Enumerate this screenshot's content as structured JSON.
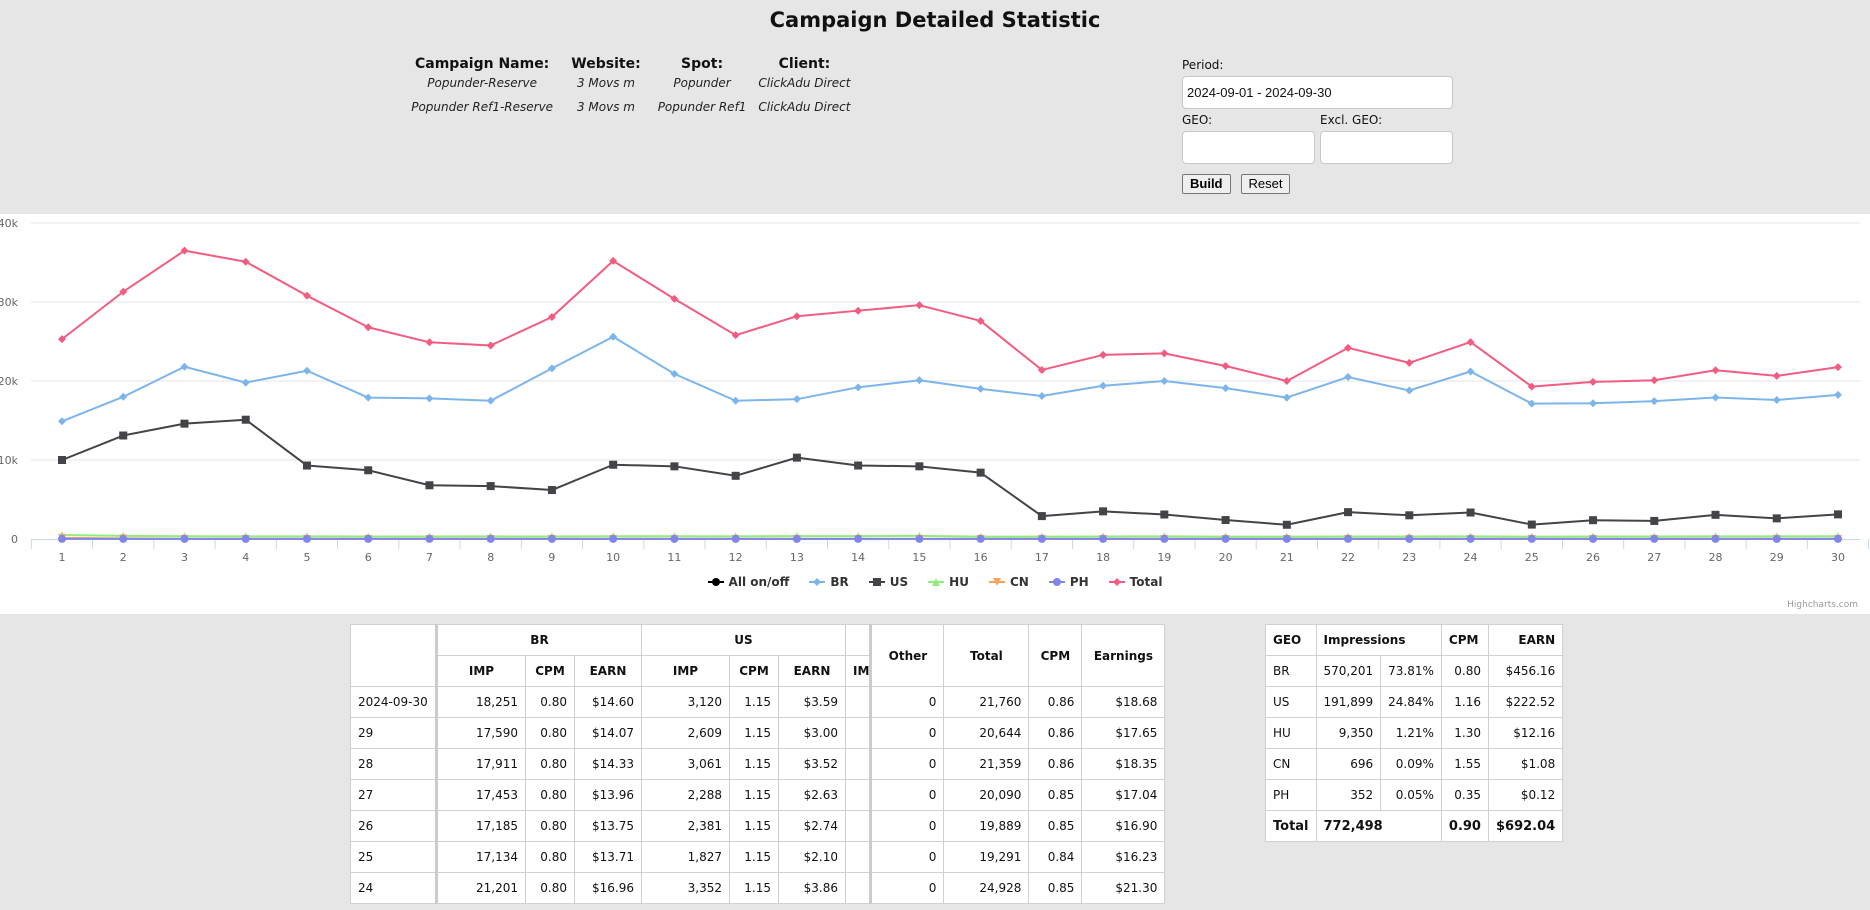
{
  "page": {
    "title": "Campaign Detailed Statistic"
  },
  "info": {
    "headers": [
      "Campaign Name:",
      "Website:",
      "Spot:",
      "Client:"
    ],
    "rows": [
      [
        "Popunder-Reserve",
        "3 Movs m",
        "Popunder",
        "ClickAdu Direct"
      ],
      [
        "Popunder Ref1-Reserve",
        "3 Movs m",
        "Popunder Ref1",
        "ClickAdu Direct"
      ]
    ]
  },
  "filters": {
    "period_label": "Period:",
    "period_value": "2024-09-01 - 2024-09-30",
    "geo_label": "GEO:",
    "geo_value": "",
    "excl_geo_label": "Excl. GEO:",
    "excl_geo_value": "",
    "build_label": "Build",
    "reset_label": "Reset"
  },
  "chart_data": {
    "type": "line",
    "title": "",
    "xlabel": "",
    "ylabel": "",
    "ylim": [
      0,
      40000
    ],
    "y_ticks": [
      "0",
      "10k",
      "20k",
      "30k",
      "40k"
    ],
    "grid": true,
    "legend_placement": "bottom-center",
    "credits": "Highcharts.com",
    "x": [
      1,
      2,
      3,
      4,
      5,
      6,
      7,
      8,
      9,
      10,
      11,
      12,
      13,
      14,
      15,
      16,
      17,
      18,
      19,
      20,
      21,
      22,
      23,
      24,
      25,
      26,
      27,
      28,
      29,
      30
    ],
    "legend": [
      {
        "name": "All on/off",
        "color": "#000000",
        "marker": "circle"
      },
      {
        "name": "BR",
        "color": "#7cb5ec",
        "marker": "diamond"
      },
      {
        "name": "US",
        "color": "#434348",
        "marker": "square"
      },
      {
        "name": "HU",
        "color": "#90ed7d",
        "marker": "triangle"
      },
      {
        "name": "CN",
        "color": "#f7a35c",
        "marker": "triangle-down"
      },
      {
        "name": "PH",
        "color": "#8085e9",
        "marker": "circle"
      },
      {
        "name": "Total",
        "color": "#f15c80",
        "marker": "diamond"
      }
    ],
    "series": [
      {
        "name": "BR",
        "color": "#7cb5ec",
        "marker": "diamond",
        "values": [
          14900,
          18000,
          21800,
          19800,
          21300,
          17900,
          17800,
          17500,
          21600,
          25600,
          20900,
          17500,
          17700,
          19200,
          20100,
          19000,
          18100,
          19400,
          20000,
          19100,
          17900,
          20500,
          18800,
          21201,
          17134,
          17185,
          17453,
          17911,
          17590,
          18251
        ]
      },
      {
        "name": "US",
        "color": "#434348",
        "marker": "square",
        "values": [
          10000,
          13100,
          14600,
          15100,
          9300,
          8700,
          6800,
          6700,
          6200,
          9400,
          9200,
          8000,
          10300,
          9300,
          9200,
          8400,
          2900,
          3500,
          3100,
          2400,
          1800,
          3400,
          3000,
          3352,
          1827,
          2381,
          2288,
          3061,
          2609,
          3120
        ]
      },
      {
        "name": "HU",
        "color": "#90ed7d",
        "marker": "triangle",
        "values": [
          500,
          400,
          350,
          330,
          330,
          320,
          320,
          330,
          310,
          350,
          350,
          340,
          360,
          370,
          390,
          300,
          300,
          320,
          330,
          300,
          300,
          310,
          320,
          330,
          300,
          310,
          310,
          330,
          330,
          350
        ]
      },
      {
        "name": "CN",
        "color": "#f7a35c",
        "marker": "triangle-down",
        "values": [
          150,
          80,
          20,
          20,
          20,
          20,
          20,
          20,
          20,
          20,
          20,
          20,
          20,
          20,
          20,
          20,
          20,
          20,
          20,
          20,
          20,
          20,
          20,
          20,
          20,
          20,
          20,
          20,
          20,
          20
        ]
      },
      {
        "name": "PH",
        "color": "#8085e9",
        "marker": "circle",
        "values": [
          10,
          10,
          12,
          12,
          12,
          12,
          12,
          12,
          12,
          12,
          12,
          12,
          12,
          12,
          12,
          12,
          12,
          12,
          12,
          12,
          12,
          12,
          12,
          12,
          12,
          12,
          12,
          12,
          12,
          12
        ]
      },
      {
        "name": "Total",
        "color": "#f15c80",
        "marker": "diamond",
        "values": [
          25300,
          31300,
          36500,
          35100,
          30800,
          26800,
          24900,
          24500,
          28100,
          35200,
          30400,
          25800,
          28200,
          28900,
          29600,
          27600,
          21400,
          23300,
          23500,
          21900,
          20000,
          24200,
          22300,
          24928,
          19291,
          19889,
          20090,
          21359,
          20644,
          21760
        ]
      }
    ]
  },
  "stats_table": {
    "group_headers": [
      "BR",
      "US"
    ],
    "sub_headers": [
      "IMP",
      "CPM",
      "EARN",
      "IMP",
      "CPM",
      "EARN",
      "IM"
    ],
    "right_headers": [
      "Other",
      "Total",
      "CPM",
      "Earnings"
    ],
    "rows": [
      {
        "date": "2024-09-30",
        "br_imp": "18,251",
        "br_cpm": "0.80",
        "br_earn": "$14.60",
        "us_imp": "3,120",
        "us_cpm": "1.15",
        "us_earn": "$3.59",
        "other": "0",
        "total": "21,760",
        "cpm": "0.86",
        "earnings": "$18.68"
      },
      {
        "date": "29",
        "br_imp": "17,590",
        "br_cpm": "0.80",
        "br_earn": "$14.07",
        "us_imp": "2,609",
        "us_cpm": "1.15",
        "us_earn": "$3.00",
        "other": "0",
        "total": "20,644",
        "cpm": "0.86",
        "earnings": "$17.65"
      },
      {
        "date": "28",
        "br_imp": "17,911",
        "br_cpm": "0.80",
        "br_earn": "$14.33",
        "us_imp": "3,061",
        "us_cpm": "1.15",
        "us_earn": "$3.52",
        "other": "0",
        "total": "21,359",
        "cpm": "0.86",
        "earnings": "$18.35"
      },
      {
        "date": "27",
        "br_imp": "17,453",
        "br_cpm": "0.80",
        "br_earn": "$13.96",
        "us_imp": "2,288",
        "us_cpm": "1.15",
        "us_earn": "$2.63",
        "other": "0",
        "total": "20,090",
        "cpm": "0.85",
        "earnings": "$17.04"
      },
      {
        "date": "26",
        "br_imp": "17,185",
        "br_cpm": "0.80",
        "br_earn": "$13.75",
        "us_imp": "2,381",
        "us_cpm": "1.15",
        "us_earn": "$2.74",
        "other": "0",
        "total": "19,889",
        "cpm": "0.85",
        "earnings": "$16.90"
      },
      {
        "date": "25",
        "br_imp": "17,134",
        "br_cpm": "0.80",
        "br_earn": "$13.71",
        "us_imp": "1,827",
        "us_cpm": "1.15",
        "us_earn": "$2.10",
        "other": "0",
        "total": "19,291",
        "cpm": "0.84",
        "earnings": "$16.23"
      },
      {
        "date": "24",
        "br_imp": "21,201",
        "br_cpm": "0.80",
        "br_earn": "$16.96",
        "us_imp": "3,352",
        "us_cpm": "1.15",
        "us_earn": "$3.86",
        "other": "0",
        "total": "24,928",
        "cpm": "0.85",
        "earnings": "$21.30"
      }
    ]
  },
  "geo_table": {
    "headers": [
      "GEO",
      "Impressions",
      "CPM",
      "EARN"
    ],
    "rows": [
      {
        "geo": "BR",
        "imp": "570,201",
        "pct": "73.81%",
        "cpm": "0.80",
        "earn": "$456.16"
      },
      {
        "geo": "US",
        "imp": "191,899",
        "pct": "24.84%",
        "cpm": "1.16",
        "earn": "$222.52"
      },
      {
        "geo": "HU",
        "imp": "9,350",
        "pct": "1.21%",
        "cpm": "1.30",
        "earn": "$12.16"
      },
      {
        "geo": "CN",
        "imp": "696",
        "pct": "0.09%",
        "cpm": "1.55",
        "earn": "$1.08"
      },
      {
        "geo": "PH",
        "imp": "352",
        "pct": "0.05%",
        "cpm": "0.35",
        "earn": "$0.12"
      }
    ],
    "total": {
      "label": "Total",
      "imp": "772,498",
      "cpm": "0.90",
      "earn": "$692.04"
    }
  }
}
